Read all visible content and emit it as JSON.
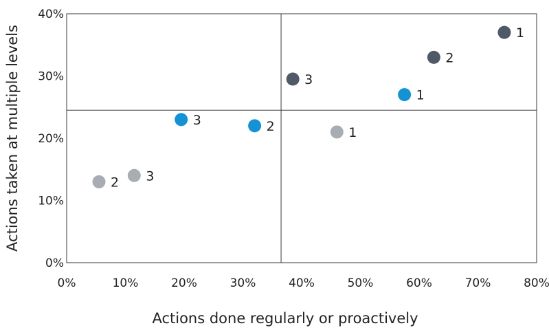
{
  "chart_data": {
    "type": "scatter",
    "title": "",
    "xlabel": "Actions done regularly or proactively",
    "ylabel": "Actions taken at multiple levels",
    "xlim": [
      0,
      80
    ],
    "ylim": [
      0,
      40
    ],
    "x_ticks": [
      0,
      10,
      20,
      30,
      40,
      50,
      60,
      70,
      80
    ],
    "y_ticks": [
      0,
      10,
      20,
      30,
      40
    ],
    "x_tick_labels": [
      "0%",
      "10%",
      "20%",
      "30%",
      "40%",
      "50%",
      "60%",
      "70%",
      "80%"
    ],
    "y_tick_labels": [
      "0%",
      "10%",
      "20%",
      "30%",
      "40%"
    ],
    "grid": false,
    "legend": "none",
    "quadrant_dividers": {
      "x": 36.5,
      "y": 24.5
    },
    "series": [
      {
        "color": "#4f5a66",
        "points": [
          {
            "x": 74.5,
            "y": 37.0,
            "label": "1"
          },
          {
            "x": 62.5,
            "y": 33.0,
            "label": "2"
          },
          {
            "x": 38.5,
            "y": 29.5,
            "label": "3"
          }
        ]
      },
      {
        "color": "#1592d4",
        "points": [
          {
            "x": 57.5,
            "y": 27.0,
            "label": "1"
          },
          {
            "x": 32.0,
            "y": 22.0,
            "label": "2"
          },
          {
            "x": 19.5,
            "y": 23.0,
            "label": "3"
          }
        ]
      },
      {
        "color": "#a7adb3",
        "points": [
          {
            "x": 46.0,
            "y": 21.0,
            "label": "1"
          },
          {
            "x": 5.5,
            "y": 13.0,
            "label": "2"
          },
          {
            "x": 11.5,
            "y": 14.0,
            "label": "3"
          }
        ]
      }
    ]
  }
}
